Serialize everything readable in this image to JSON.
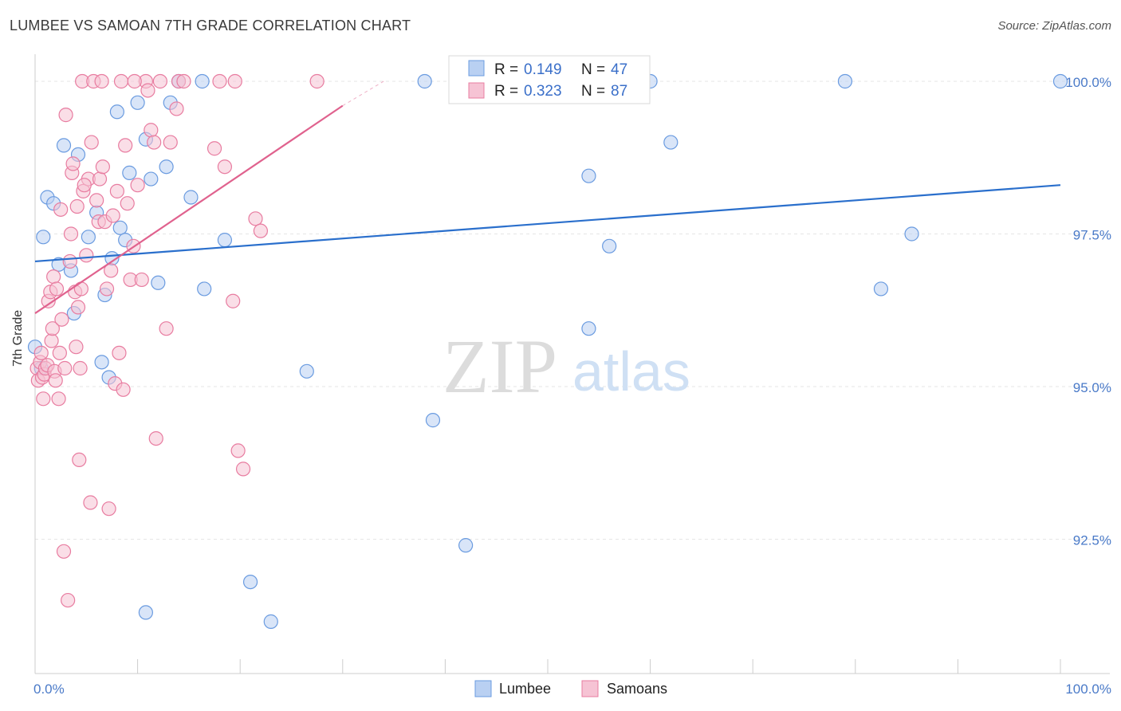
{
  "chart_data": {
    "type": "scatter",
    "title": "LUMBEE VS SAMOAN 7TH GRADE CORRELATION CHART",
    "source": "Source: ZipAtlas.com",
    "ylabel": "7th Grade",
    "xlim": [
      0,
      100
    ],
    "ylim": [
      90.3,
      100.3
    ],
    "x_ticks": [
      "0.0%",
      "100.0%"
    ],
    "y_ticks": [
      {
        "value": 100.0,
        "label": "100.0%"
      },
      {
        "value": 97.5,
        "label": "97.5%"
      },
      {
        "value": 95.0,
        "label": "95.0%"
      },
      {
        "value": 92.5,
        "label": "92.5%"
      }
    ],
    "watermark": {
      "zip": "ZIP",
      "atlas": "atlas"
    },
    "legend": [
      {
        "r_label": "R =",
        "r_value": "0.149",
        "n_label": "N =",
        "n_value": "47"
      },
      {
        "r_label": "R =",
        "r_value": "0.323",
        "n_label": "N =",
        "n_value": "87"
      }
    ],
    "series": [
      {
        "name": "Lumbee",
        "color": "#6a9be0",
        "fill": "#b9d0f2",
        "line_color": "#2a6fcc",
        "trend": {
          "x": [
            0,
            100
          ],
          "y": [
            97.05,
            98.3
          ]
        },
        "points": [
          [
            0,
            95.65
          ],
          [
            0.8,
            97.45
          ],
          [
            1.2,
            98.1
          ],
          [
            1.8,
            98.0
          ],
          [
            2.3,
            97.0
          ],
          [
            2.8,
            98.95
          ],
          [
            3.5,
            96.9
          ],
          [
            3.8,
            96.2
          ],
          [
            4.2,
            98.8
          ],
          [
            5.2,
            97.45
          ],
          [
            6.0,
            97.85
          ],
          [
            6.5,
            95.4
          ],
          [
            6.8,
            96.5
          ],
          [
            7.2,
            95.15
          ],
          [
            7.5,
            97.1
          ],
          [
            8.0,
            99.5
          ],
          [
            8.3,
            97.6
          ],
          [
            8.8,
            97.4
          ],
          [
            9.2,
            98.5
          ],
          [
            10.0,
            99.65
          ],
          [
            10.8,
            99.05
          ],
          [
            11.3,
            98.4
          ],
          [
            12.0,
            96.7
          ],
          [
            12.8,
            98.6
          ],
          [
            13.2,
            99.65
          ],
          [
            14.0,
            100.0
          ],
          [
            15.2,
            98.1
          ],
          [
            16.3,
            100.0
          ],
          [
            16.5,
            96.6
          ],
          [
            18.5,
            97.4
          ],
          [
            21.0,
            91.8
          ],
          [
            23.0,
            91.15
          ],
          [
            26.5,
            95.25
          ],
          [
            38.0,
            100.0
          ],
          [
            38.8,
            94.45
          ],
          [
            42.0,
            92.4
          ],
          [
            54.0,
            98.45
          ],
          [
            56.0,
            97.3
          ],
          [
            54.0,
            95.95
          ],
          [
            60.0,
            100.0
          ],
          [
            62.0,
            99.0
          ],
          [
            79.0,
            100.0
          ],
          [
            82.5,
            96.6
          ],
          [
            85.5,
            97.5
          ],
          [
            100,
            100.0
          ],
          [
            10.8,
            91.3
          ],
          [
            0.6,
            95.3
          ]
        ]
      },
      {
        "name": "Samoans",
        "color": "#e87ca0",
        "fill": "#f6c3d4",
        "line_color": "#e0628e",
        "trend": {
          "x": [
            0,
            30
          ],
          "y": [
            96.2,
            99.6
          ]
        },
        "trend_dashed": {
          "x": [
            30,
            34
          ],
          "y": [
            99.6,
            100.0
          ]
        },
        "points": [
          [
            0.2,
            95.3
          ],
          [
            0.3,
            95.1
          ],
          [
            0.5,
            95.4
          ],
          [
            0.6,
            95.55
          ],
          [
            0.7,
            95.15
          ],
          [
            0.8,
            94.8
          ],
          [
            0.9,
            95.2
          ],
          [
            1.0,
            95.3
          ],
          [
            1.2,
            95.35
          ],
          [
            1.3,
            96.4
          ],
          [
            1.5,
            96.55
          ],
          [
            1.6,
            95.75
          ],
          [
            1.7,
            95.95
          ],
          [
            1.8,
            96.8
          ],
          [
            1.9,
            95.25
          ],
          [
            2.0,
            95.1
          ],
          [
            2.1,
            96.6
          ],
          [
            2.3,
            94.8
          ],
          [
            2.4,
            95.55
          ],
          [
            2.5,
            97.9
          ],
          [
            2.6,
            96.1
          ],
          [
            2.8,
            92.3
          ],
          [
            3.0,
            99.45
          ],
          [
            3.2,
            91.5
          ],
          [
            3.4,
            97.05
          ],
          [
            3.5,
            97.5
          ],
          [
            3.6,
            98.5
          ],
          [
            3.7,
            98.65
          ],
          [
            3.9,
            96.55
          ],
          [
            4.0,
            95.65
          ],
          [
            4.1,
            97.95
          ],
          [
            4.2,
            96.3
          ],
          [
            4.3,
            93.8
          ],
          [
            4.4,
            95.3
          ],
          [
            4.5,
            96.6
          ],
          [
            4.6,
            100.0
          ],
          [
            4.7,
            98.2
          ],
          [
            5.0,
            97.15
          ],
          [
            5.2,
            98.4
          ],
          [
            5.4,
            93.1
          ],
          [
            5.5,
            99.0
          ],
          [
            5.7,
            100.0
          ],
          [
            6.0,
            98.05
          ],
          [
            6.2,
            97.7
          ],
          [
            6.3,
            98.4
          ],
          [
            6.5,
            100.0
          ],
          [
            6.8,
            97.7
          ],
          [
            7.0,
            96.6
          ],
          [
            7.2,
            93.0
          ],
          [
            7.4,
            96.9
          ],
          [
            7.6,
            97.8
          ],
          [
            7.8,
            95.05
          ],
          [
            8.0,
            98.2
          ],
          [
            8.2,
            95.55
          ],
          [
            8.4,
            100.0
          ],
          [
            8.6,
            94.95
          ],
          [
            8.8,
            98.95
          ],
          [
            9.0,
            98.0
          ],
          [
            9.3,
            96.75
          ],
          [
            9.6,
            97.3
          ],
          [
            10.0,
            98.3
          ],
          [
            10.4,
            96.75
          ],
          [
            10.8,
            100.0
          ],
          [
            11.0,
            99.85
          ],
          [
            11.3,
            99.2
          ],
          [
            11.6,
            99.0
          ],
          [
            11.8,
            94.15
          ],
          [
            12.2,
            100.0
          ],
          [
            12.8,
            95.95
          ],
          [
            13.2,
            99.0
          ],
          [
            14.0,
            100.0
          ],
          [
            14.5,
            100.0
          ],
          [
            17.5,
            98.9
          ],
          [
            18.0,
            100.0
          ],
          [
            18.5,
            98.6
          ],
          [
            19.3,
            96.4
          ],
          [
            19.5,
            100.0
          ],
          [
            19.8,
            93.95
          ],
          [
            20.3,
            93.65
          ],
          [
            21.5,
            97.75
          ],
          [
            22.0,
            97.55
          ],
          [
            27.5,
            100.0
          ],
          [
            2.9,
            95.3
          ],
          [
            4.8,
            98.3
          ],
          [
            6.6,
            98.6
          ],
          [
            9.7,
            100.0
          ],
          [
            13.8,
            99.55
          ]
        ]
      }
    ]
  }
}
